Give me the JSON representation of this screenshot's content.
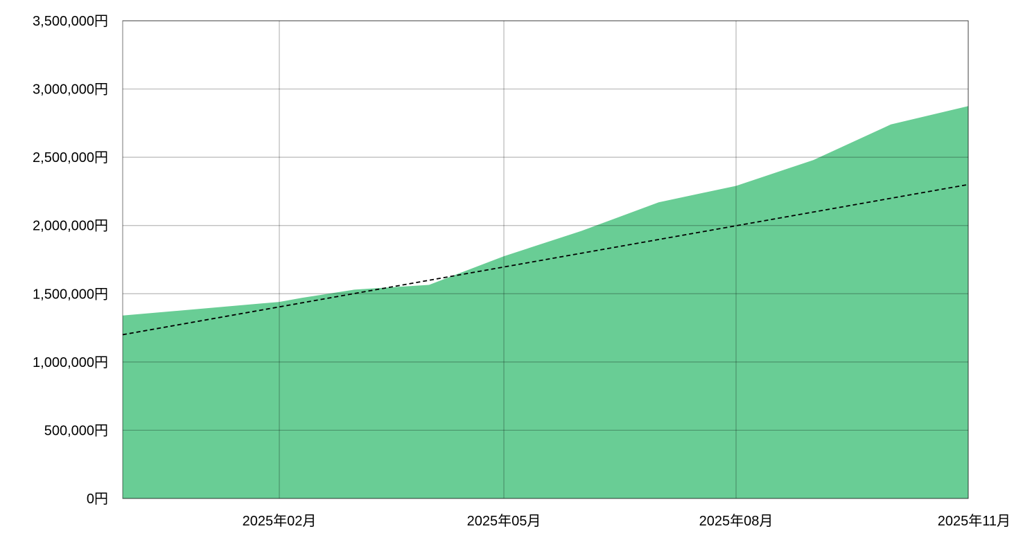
{
  "chart_data": {
    "type": "area",
    "title": "",
    "xlabel": "",
    "ylabel": "",
    "x": [
      "2025-01",
      "2025-02",
      "2025-03",
      "2025-04",
      "2025-05",
      "2025-06",
      "2025-07",
      "2025-08",
      "2025-09",
      "2025-10",
      "2025-11"
    ],
    "x_ticks": [
      {
        "x": "2025-02",
        "label": "2025年02月"
      },
      {
        "x": "2025-05",
        "label": "2025年05月"
      },
      {
        "x": "2025-08",
        "label": "2025年08月"
      },
      {
        "x": "2025-11",
        "label": "2025年11月"
      }
    ],
    "y_ticks": [
      {
        "value": 0,
        "label": "0円"
      },
      {
        "value": 500000,
        "label": "500,000円"
      },
      {
        "value": 1000000,
        "label": "1,000,000円"
      },
      {
        "value": 1500000,
        "label": "1,500,000円"
      },
      {
        "value": 2000000,
        "label": "2,000,000円"
      },
      {
        "value": 2500000,
        "label": "2,500,000円"
      },
      {
        "value": 3000000,
        "label": "3,000,000円"
      },
      {
        "value": 3500000,
        "label": "3,500,000円"
      }
    ],
    "ylim": [
      0,
      3500000
    ],
    "grid": true,
    "legend": "none",
    "series": [
      {
        "kind": "area",
        "color": "#69cd95",
        "values": [
          1340000,
          1440000,
          1470000,
          1530000,
          1565000,
          1775000,
          1960000,
          2170000,
          2290000,
          2480000,
          2740000,
          2875000
        ],
        "x": [
          "2025-01",
          "2025-02",
          "2025-02-10",
          "2025-03",
          "2025-04",
          "2025-05",
          "2025-06",
          "2025-07",
          "2025-08",
          "2025-09",
          "2025-10",
          "2025-11"
        ]
      },
      {
        "kind": "line",
        "style": "dashed",
        "color": "#000000",
        "values": [
          1200000,
          2300000
        ],
        "x": [
          "2025-01",
          "2025-11"
        ]
      }
    ]
  }
}
